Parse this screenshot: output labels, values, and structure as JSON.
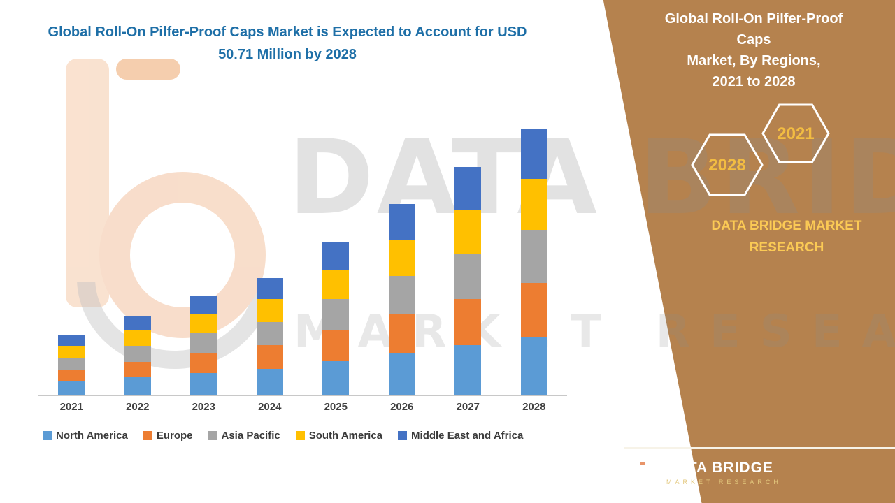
{
  "left_panel": {
    "title": "Global Roll-On Pilfer-Proof Caps Market is Expected to Account for USD 50.71 Million by 2028"
  },
  "right_panel": {
    "title_lines": [
      "Global Roll-On Pilfer-Proof Caps",
      "Market, By Regions,",
      "2021 to 2028"
    ],
    "hexagons": [
      {
        "label": "2028"
      },
      {
        "label": "2021"
      }
    ],
    "brand_text": "DATA BRIDGE MARKET RESEARCH",
    "logo": {
      "name": "DATA BRIDGE",
      "subtitle": "MARKET RESEARCH"
    },
    "colors": {
      "panel_background": "#b5824e",
      "accent_gold": "#f2bc42",
      "headline_blue": "#1e6fa7"
    }
  },
  "watermark": {
    "line1": "DATA BRIDGE",
    "line2": "MARKET RESEARCH"
  },
  "chart_data": {
    "type": "bar",
    "stacked": true,
    "title": "Global Roll-On Pilfer-Proof Caps Market, By Regions, 2021 to 2028",
    "unit": "USD Million",
    "categories": [
      "2021",
      "2022",
      "2023",
      "2024",
      "2025",
      "2026",
      "2027",
      "2028"
    ],
    "series": [
      {
        "name": "North America",
        "color": "#5b9bd5",
        "values": [
          2.5,
          3.3,
          4.1,
          4.9,
          6.4,
          8.0,
          9.5,
          11.1
        ]
      },
      {
        "name": "Europe",
        "color": "#ed7d31",
        "values": [
          2.3,
          3.0,
          3.8,
          4.5,
          5.9,
          7.3,
          8.7,
          10.2
        ]
      },
      {
        "name": "Asia Pacific",
        "color": "#a5a5a5",
        "values": [
          2.3,
          3.0,
          3.8,
          4.5,
          5.9,
          7.3,
          8.7,
          10.1
        ]
      },
      {
        "name": "South America",
        "color": "#ffc000",
        "values": [
          2.2,
          2.9,
          3.6,
          4.3,
          5.6,
          7.0,
          8.4,
          9.8
        ]
      },
      {
        "name": "Middle East and Africa",
        "color": "#4472c4",
        "values": [
          2.2,
          2.9,
          3.5,
          4.1,
          5.4,
          6.8,
          8.2,
          9.5
        ]
      }
    ],
    "totals": [
      11.5,
      15.1,
      18.8,
      22.3,
      29.2,
      36.4,
      43.5,
      50.71
    ],
    "ylim": [
      0,
      52
    ],
    "grid": false,
    "y_axis_visible": false,
    "legend_position": "bottom"
  }
}
